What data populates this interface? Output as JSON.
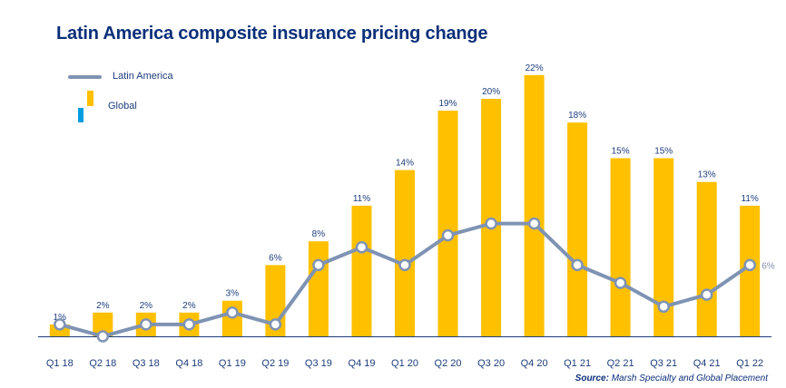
{
  "chart_data": {
    "type": "bar",
    "title": "Latin America composite insurance pricing change",
    "categories": [
      "Q1 18",
      "Q2 18",
      "Q3 18",
      "Q4 18",
      "Q1 19",
      "Q2 19",
      "Q3 19",
      "Q4 19",
      "Q1 20",
      "Q2 20",
      "Q3 20",
      "Q4 20",
      "Q1 21",
      "Q2 21",
      "Q3 21",
      "Q4 21",
      "Q1 22"
    ],
    "series": [
      {
        "name": "Global",
        "kind": "bar",
        "values": [
          1,
          2,
          2,
          2,
          3,
          6,
          8,
          11,
          14,
          19,
          20,
          22,
          18,
          15,
          15,
          13,
          11
        ],
        "labels": [
          "1%",
          "2%",
          "2%",
          "2%",
          "3%",
          "6%",
          "8%",
          "11%",
          "14%",
          "19%",
          "20%",
          "22%",
          "18%",
          "15%",
          "15%",
          "13%",
          "11%"
        ]
      },
      {
        "name": "Latin America",
        "kind": "line",
        "values": [
          1,
          0,
          1,
          1,
          2,
          1,
          6,
          7.5,
          6,
          8.5,
          9.5,
          9.5,
          6,
          4.5,
          2.5,
          3.5,
          6
        ],
        "last_label": "6%"
      }
    ],
    "ylim": [
      0,
      23
    ],
    "xlabel": "",
    "ylabel": "",
    "grid": false,
    "legend_position": "top-left",
    "colors": {
      "bar": "#ffc000",
      "line": "#7f93b3",
      "marker_fill": "#ffffff",
      "axis": "#1d3d7c",
      "title": "#0b2f7a",
      "legend_blue": "#009de0"
    }
  },
  "legend": {
    "latin_america": "Latin America",
    "global": "Global"
  },
  "source": {
    "prefix": "Source:",
    "text": "Marsh Specialty and Global Placement"
  }
}
